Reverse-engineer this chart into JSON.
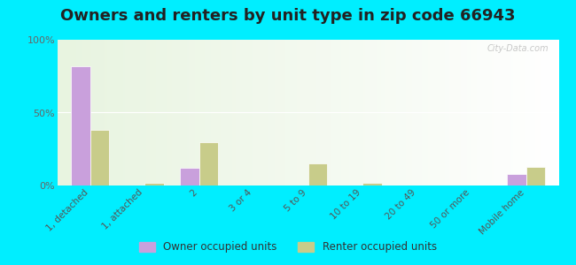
{
  "title": "Owners and renters by unit type in zip code 66943",
  "categories": [
    "1, detached",
    "1, attached",
    "2",
    "3 or 4",
    "5 to 9",
    "10 to 19",
    "20 to 49",
    "50 or more",
    "Mobile home"
  ],
  "owner_values": [
    82,
    0,
    12,
    0,
    0,
    0,
    0,
    0,
    8
  ],
  "renter_values": [
    38,
    2,
    30,
    0,
    15,
    2,
    0,
    0,
    13
  ],
  "owner_color": "#c9a0dc",
  "renter_color": "#c8cc8a",
  "bg_color_top": "#f0f8ec",
  "bg_color_bottom": "#e8f4e0",
  "outer_bg": "#00eeff",
  "ylim": [
    0,
    100
  ],
  "yticks": [
    0,
    50,
    100
  ],
  "ytick_labels": [
    "0%",
    "50%",
    "100%"
  ],
  "bar_width": 0.35,
  "legend_owner": "Owner occupied units",
  "legend_renter": "Renter occupied units",
  "title_fontsize": 13,
  "watermark": "City-Data.com"
}
